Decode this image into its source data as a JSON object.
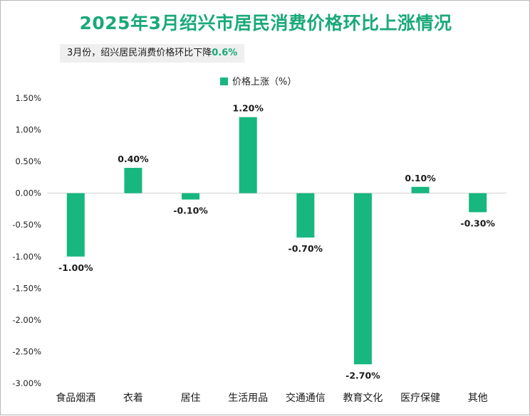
{
  "title": "2025年3月绍兴市居民消费价格环比上涨情况",
  "subtitle": {
    "text": "3月份，绍兴居民消费价格环比下降",
    "highlight": "0.6%"
  },
  "colors": {
    "bar": "#17b77f",
    "title": "#1aa978",
    "axis": "#d0d0d0"
  },
  "chart_data": {
    "type": "bar",
    "legend": {
      "label": "价格上涨（%）",
      "placement": "top-center"
    },
    "categories": [
      "食品烟酒",
      "衣着",
      "居住",
      "生活用品",
      "交通通信",
      "教育文化",
      "医疗保健",
      "其他"
    ],
    "values": [
      -1.0,
      0.4,
      -0.1,
      1.2,
      -0.7,
      -2.7,
      0.1,
      -0.3
    ],
    "value_labels": [
      "-1.00%",
      "0.40%",
      "-0.10%",
      "1.20%",
      "-0.70%",
      "-2.70%",
      "0.10%",
      "-0.30%"
    ],
    "ylim": [
      -3.0,
      1.5
    ],
    "yticks": [
      1.5,
      1.0,
      0.5,
      0.0,
      -0.5,
      -1.0,
      -1.5,
      -2.0,
      -2.5,
      -3.0
    ],
    "ytick_labels": [
      "1.50%",
      "1.00%",
      "0.50%",
      "0.00%",
      "-0.50%",
      "-1.00%",
      "-1.50%",
      "-2.00%",
      "-2.50%",
      "-3.00%"
    ],
    "grid": false
  }
}
